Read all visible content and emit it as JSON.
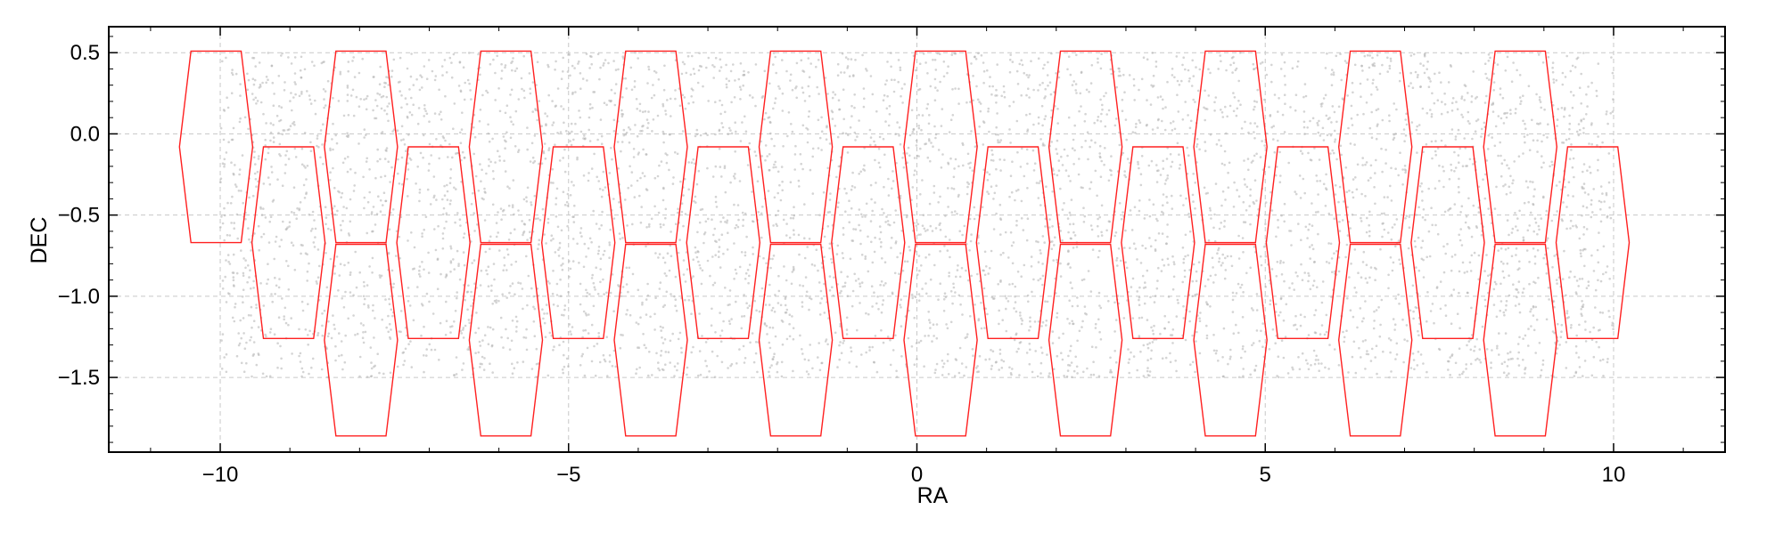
{
  "chart_data": {
    "type": "scatter",
    "title": "",
    "xlabel": "RA",
    "ylabel": "DEC",
    "xlim": [
      -11.6,
      11.6
    ],
    "ylim": [
      -1.96,
      0.66
    ],
    "x_ticks": [
      -10,
      -5,
      0,
      5,
      10
    ],
    "x_tick_labels": [
      "−10",
      "−5",
      "0",
      "5",
      "10"
    ],
    "y_ticks": [
      0.5,
      0.0,
      -0.5,
      -1.0,
      -1.5
    ],
    "y_tick_labels": [
      "0.5",
      "0.0",
      "−0.5",
      "−1.0",
      "−1.5"
    ],
    "grid": true,
    "points": {
      "description": "dense field of small gray source markers",
      "x_range": [
        -10.0,
        10.0
      ],
      "y_range": [
        -1.5,
        0.5
      ],
      "color": "#b0b0b0"
    },
    "footprints": {
      "shape": "hexagon",
      "color": "#ff2020",
      "width_ra": 1.05,
      "flat_top_width_ra": 0.72,
      "height_dec": 1.18,
      "columns": [
        {
          "ra": -10.06,
          "centers_dec": [
            -0.08
          ]
        },
        {
          "ra": -9.02,
          "centers_dec": [
            -0.67
          ]
        },
        {
          "ra": -7.98,
          "centers_dec": [
            -0.08,
            -1.27
          ]
        },
        {
          "ra": -6.94,
          "centers_dec": [
            -0.67
          ]
        },
        {
          "ra": -5.9,
          "centers_dec": [
            -0.08,
            -1.27
          ]
        },
        {
          "ra": -4.86,
          "centers_dec": [
            -0.67
          ]
        },
        {
          "ra": -3.82,
          "centers_dec": [
            -0.08,
            -1.27
          ]
        },
        {
          "ra": -2.78,
          "centers_dec": [
            -0.67
          ]
        },
        {
          "ra": -1.74,
          "centers_dec": [
            -0.08,
            -1.27
          ]
        },
        {
          "ra": -0.7,
          "centers_dec": [
            -0.67
          ]
        },
        {
          "ra": 0.34,
          "centers_dec": [
            -0.08,
            -1.27
          ]
        },
        {
          "ra": 1.38,
          "centers_dec": [
            -0.67
          ]
        },
        {
          "ra": 2.42,
          "centers_dec": [
            -0.08,
            -1.27
          ]
        },
        {
          "ra": 3.46,
          "centers_dec": [
            -0.67
          ]
        },
        {
          "ra": 4.5,
          "centers_dec": [
            -0.08,
            -1.27
          ]
        },
        {
          "ra": 5.54,
          "centers_dec": [
            -0.67
          ]
        },
        {
          "ra": 6.58,
          "centers_dec": [
            -0.08,
            -1.27
          ]
        },
        {
          "ra": 7.62,
          "centers_dec": [
            -0.67
          ]
        },
        {
          "ra": 8.66,
          "centers_dec": [
            -0.08,
            -1.27
          ]
        },
        {
          "ra": 9.7,
          "centers_dec": [
            -0.67
          ]
        }
      ]
    }
  }
}
